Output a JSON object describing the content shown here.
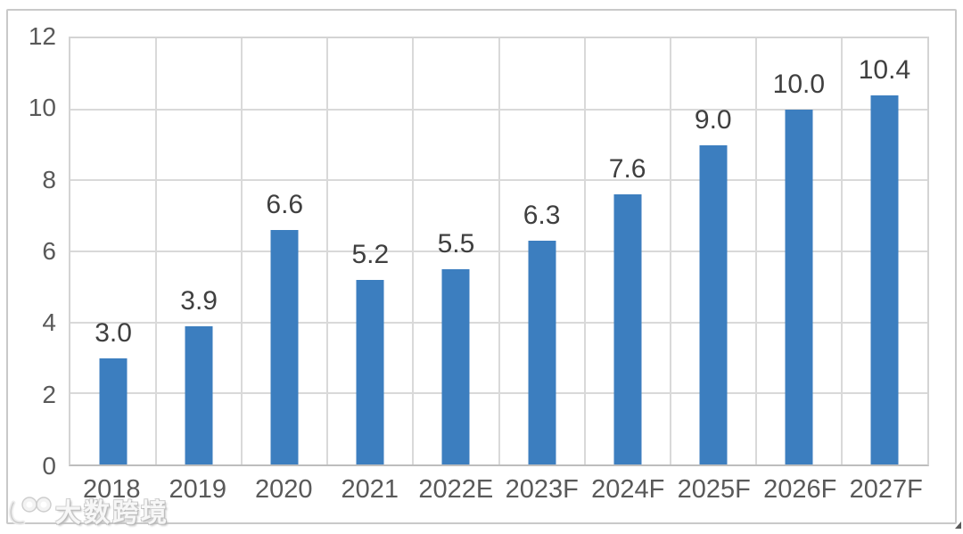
{
  "chart_data": {
    "type": "bar",
    "title": "",
    "xlabel": "",
    "ylabel": "",
    "categories": [
      "2018",
      "2019",
      "2020",
      "2021",
      "2022E",
      "2023F",
      "2024F",
      "2025F",
      "2026F",
      "2027F"
    ],
    "values": [
      3.0,
      3.9,
      6.6,
      5.2,
      5.5,
      6.3,
      7.6,
      9.0,
      10.0,
      10.4
    ],
    "data_labels": [
      "3.0",
      "3.9",
      "6.6",
      "5.2",
      "5.5",
      "6.3",
      "7.6",
      "9.0",
      "10.0",
      "10.4"
    ],
    "ylim": [
      0,
      12
    ],
    "yticks": [
      0,
      2,
      4,
      6,
      8,
      10,
      12
    ],
    "grid": "horizontal-and-vertical",
    "legend_position": "none",
    "bar_color": "#3c7ebf"
  },
  "colors": {
    "bar": "#3c7ebf",
    "gridline": "#d9d9d9",
    "plot_border": "#d4d4d4",
    "axis_baseline": "#bdbdbd",
    "outer_border": "#c9c9c9",
    "tick_text": "#595959",
    "value_text": "#3f3f3f",
    "background": "#ffffff"
  },
  "watermark": {
    "logo": "100-smiley-logo",
    "text": "大数跨境"
  }
}
